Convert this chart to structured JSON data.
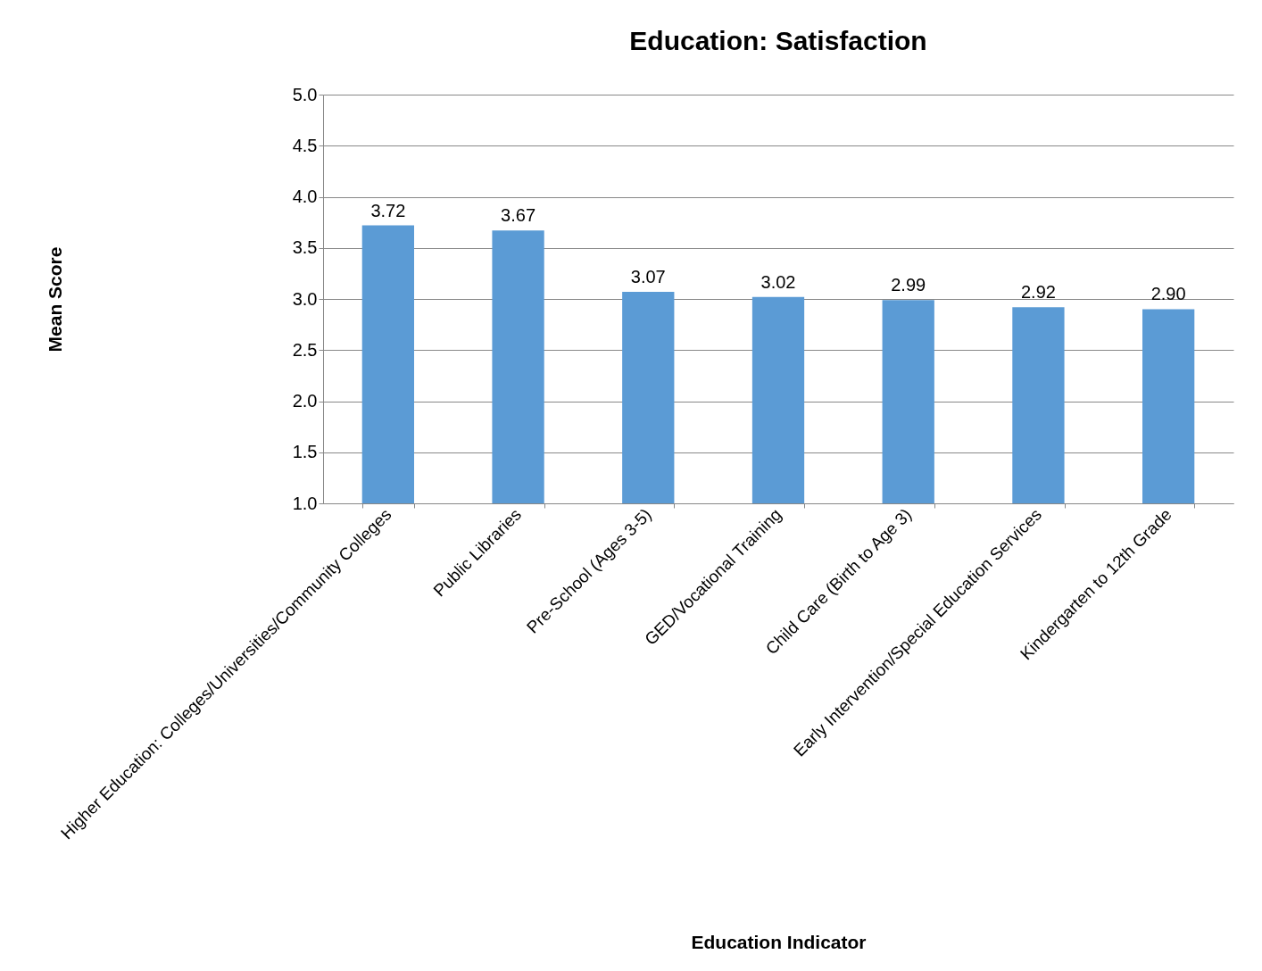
{
  "chart_data": {
    "type": "bar",
    "title": "Education: Satisfaction",
    "xlabel": "Education Indicator",
    "ylabel": "Mean Score",
    "categories": [
      "Higher Education: Colleges/Universities/Community Colleges",
      "Public Libraries",
      "Pre-School (Ages 3-5)",
      "GED/Vocational Training",
      "Child Care (Birth to Age 3)",
      "Early Intervention/Special Education Services",
      "Kindergarten to 12th Grade"
    ],
    "values": [
      3.72,
      3.67,
      3.07,
      3.02,
      2.99,
      2.92,
      2.9
    ],
    "value_labels": [
      "3.72",
      "3.67",
      "3.07",
      "3.02",
      "2.99",
      "2.92",
      "2.90"
    ],
    "color": "#5b9bd5",
    "ylim": [
      1,
      5
    ],
    "yticks": [
      {
        "value": 1,
        "label": "1.0"
      },
      {
        "value": 1.5,
        "label": "1.5"
      },
      {
        "value": 2,
        "label": "2.0"
      },
      {
        "value": 2.5,
        "label": "2.5"
      },
      {
        "value": 3,
        "label": "3.0"
      },
      {
        "value": 3.5,
        "label": "3.5"
      },
      {
        "value": 4,
        "label": "4.0"
      },
      {
        "value": 4.5,
        "label": "4.5"
      },
      {
        "value": 5,
        "label": "5.0"
      }
    ],
    "grid": "y"
  }
}
